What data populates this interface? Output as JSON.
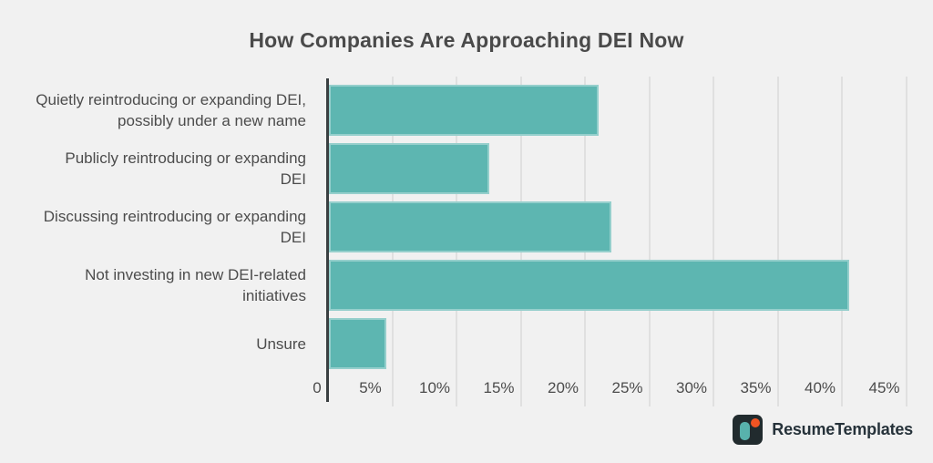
{
  "title": "How Companies Are Approaching DEI Now",
  "chart_data": {
    "type": "bar",
    "orientation": "horizontal",
    "title": "How Companies Are Approaching DEI Now",
    "categories": [
      "Quietly reintroducing or expanding DEI, possibly under a new name",
      "Publicly reintroducing or expanding DEI",
      "Discussing reintroducing or expanding DEI",
      "Not investing in new DEI-related initiatives",
      "Unsure"
    ],
    "category_lines": [
      [
        "Quietly reintroducing or expanding DEI,",
        "possibly under a new name"
      ],
      [
        "Publicly reintroducing or expanding",
        "DEI"
      ],
      [
        "Discussing reintroducing or expanding",
        "DEI"
      ],
      [
        "Not investing in new DEI-related",
        "initiatives"
      ],
      [
        "Unsure"
      ]
    ],
    "values": [
      21,
      12.5,
      22,
      40.5,
      4.5
    ],
    "unit": "%",
    "xlabel": "",
    "ylabel": "",
    "xlim": [
      0,
      45
    ],
    "x_tick_values": [
      0,
      5,
      10,
      15,
      20,
      25,
      30,
      35,
      40,
      45
    ],
    "x_ticks": [
      "0",
      "5%",
      "10%",
      "15%",
      "20%",
      "25%",
      "30%",
      "35%",
      "40%",
      "45%"
    ],
    "grid": true,
    "legend": false,
    "colors": {
      "bar": "#5db6b1",
      "axis": "#3a3f41",
      "gridline": "#e0e0e0",
      "background": "#f1f1f1",
      "text": "#4c4c4c",
      "title": "#4a4a4a"
    }
  },
  "branding": {
    "logo_text": "ResumeTemplates",
    "icon": "resumetemplates-logo-icon",
    "colors": {
      "icon_background": "#212b2e",
      "icon_bar": "#58b2ac",
      "icon_dot": "#f05423",
      "text": "#26323a"
    }
  }
}
